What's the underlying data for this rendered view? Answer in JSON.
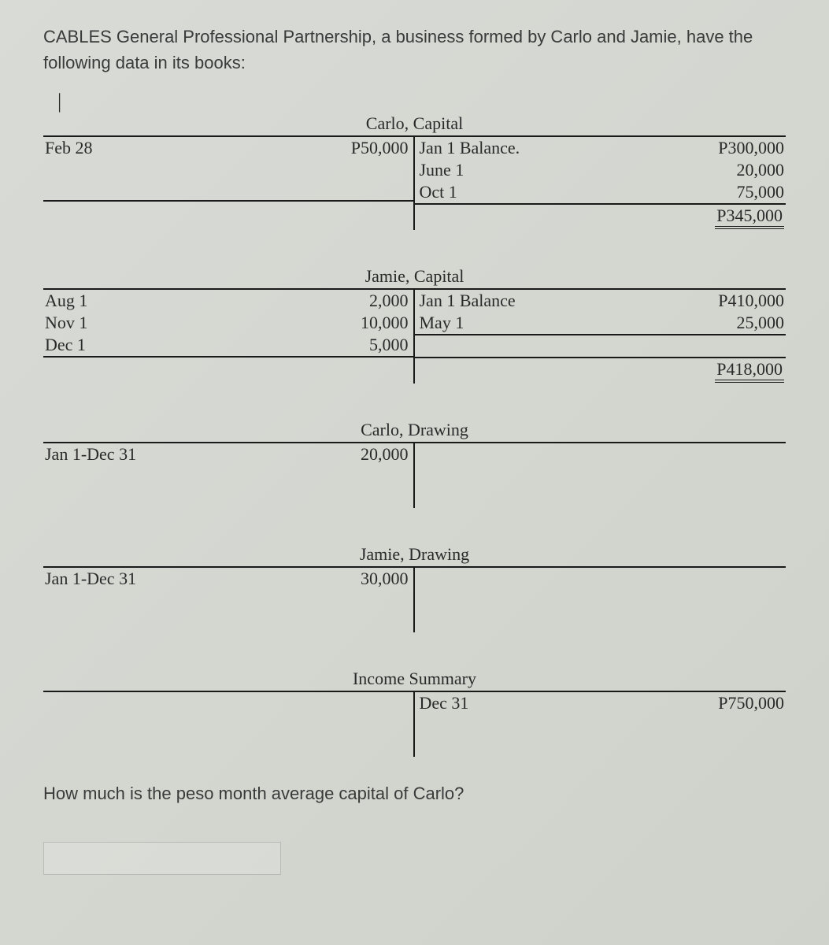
{
  "intro": "CABLES General Professional Partnership, a business formed by Carlo and Jamie, have the following data in its books:",
  "carlo_capital": {
    "title": "Carlo, Capital",
    "debits": [
      {
        "label": "Feb 28",
        "value": "P50,000"
      }
    ],
    "credits": [
      {
        "label": "Jan 1 Balance.",
        "value": "P300,000"
      },
      {
        "label": "June 1",
        "value": "20,000"
      },
      {
        "label": "Oct 1",
        "value": "75,000"
      }
    ],
    "credit_total": "P345,000"
  },
  "jamie_capital": {
    "title": "Jamie, Capital",
    "debits": [
      {
        "label": "Aug 1",
        "value": "2,000"
      },
      {
        "label": "Nov 1",
        "value": "10,000"
      },
      {
        "label": "Dec 1",
        "value": "5,000"
      }
    ],
    "credits": [
      {
        "label": "Jan 1 Balance",
        "value": "P410,000"
      },
      {
        "label": "May 1",
        "value": "25,000"
      }
    ],
    "credit_total": "P418,000"
  },
  "carlo_drawing": {
    "title": "Carlo, Drawing",
    "debits": [
      {
        "label": "Jan 1-Dec 31",
        "value": "20,000"
      }
    ]
  },
  "jamie_drawing": {
    "title": "Jamie, Drawing",
    "debits": [
      {
        "label": "Jan 1-Dec 31",
        "value": "30,000"
      }
    ]
  },
  "income_summary": {
    "title": "Income Summary",
    "credits": [
      {
        "label": "Dec 31",
        "value": "P750,000"
      }
    ]
  },
  "question": "How much is the peso month average capital of Carlo?"
}
